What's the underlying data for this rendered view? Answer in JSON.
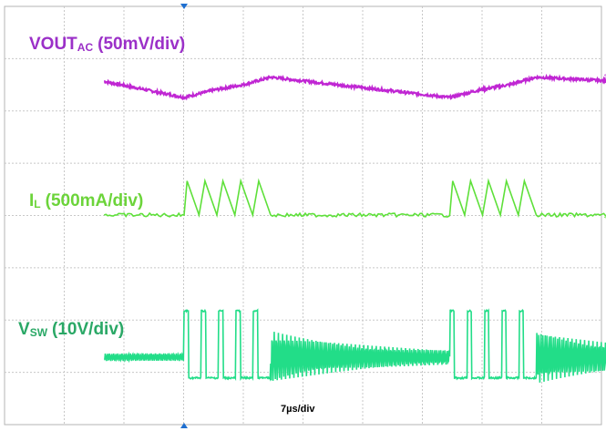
{
  "chart_data": {
    "type": "line",
    "title": "",
    "timebase": "7µs/div",
    "grid": true,
    "xlim": [
      -1.34,
      8.66
    ],
    "colors": {
      "VOUT": "#c026d3",
      "IL": "#5ee03a",
      "VSW": "#22dd88",
      "grid": "#c8c8c8"
    },
    "channel_labels": {
      "VOUT": {
        "main": "VOUT",
        "sub": "AC",
        "scale": "(50mV/div)"
      },
      "IL": {
        "main": "I",
        "sub": "L",
        "scale": "(500mA/div)"
      },
      "VSW": {
        "main": "V",
        "sub": "SW",
        "scale": "(10V/div)"
      }
    },
    "switching_bursts": [
      {
        "start_div": 0.0,
        "end_div": 1.45,
        "pulses": 5
      },
      {
        "start_div": 4.45,
        "end_div": 5.9,
        "pulses": 5
      }
    ],
    "series": [
      {
        "name": "VOUT",
        "unit_per_div": "50mV/div",
        "x_div": [
          -1.34,
          0.0,
          0.5,
          1.0,
          1.45,
          4.45,
          4.95,
          5.45,
          5.9,
          8.66
        ],
        "y_div": [
          -0.4,
          -1.15,
          -0.8,
          -0.55,
          -0.2,
          -1.15,
          -0.8,
          -0.55,
          -0.2,
          -0.6
        ]
      },
      {
        "name": "IL",
        "unit_per_div": "500mA/div",
        "x_div": [
          -1.34,
          0.0,
          0.05,
          0.25,
          0.35,
          0.55,
          0.65,
          0.85,
          0.95,
          1.15,
          1.25,
          1.45,
          4.45,
          4.5,
          4.7,
          4.8,
          5.0,
          5.1,
          5.3,
          5.4,
          5.6,
          5.7,
          5.9,
          8.66
        ],
        "y_div": [
          0,
          0,
          1.1,
          0,
          1.1,
          0,
          1.1,
          0,
          1.1,
          0,
          1.1,
          0,
          0,
          1.1,
          0,
          1.1,
          0,
          1.1,
          0,
          1.1,
          0,
          1.1,
          0,
          0
        ]
      },
      {
        "name": "VSW",
        "unit_per_div": "10V/div",
        "x_div": [
          -1.34,
          0.0,
          0.0,
          0.2,
          0.2,
          1.45,
          1.45,
          4.45,
          4.45,
          4.65,
          4.65,
          5.9,
          5.9,
          8.66
        ],
        "y_div": [
          0.0,
          0.0,
          1.4,
          1.4,
          -0.6,
          -0.6,
          0.0,
          0.0,
          1.4,
          1.4,
          -0.6,
          -0.6,
          0.0,
          0.0
        ]
      }
    ]
  }
}
